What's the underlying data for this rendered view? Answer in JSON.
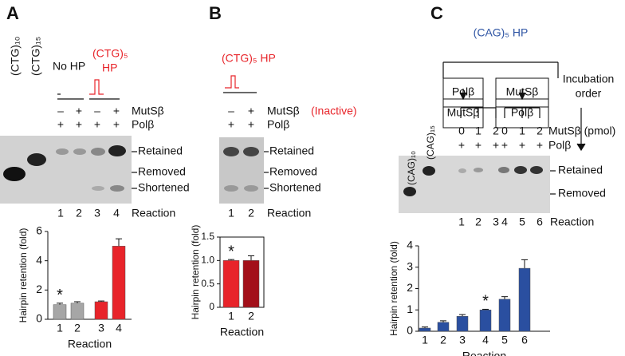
{
  "panels": {
    "A": {
      "label": "A",
      "lanes": [
        "(CTG)₁₀",
        "(CTG)₁₅"
      ],
      "no_hp": "No HP",
      "hp": [
        "(CTG)₅",
        "HP"
      ],
      "mutsb": {
        "label": "MutSβ",
        "marks": [
          "–",
          "+",
          "–",
          "+"
        ]
      },
      "polb": {
        "label": "Polβ",
        "marks": [
          "+",
          "+",
          "+",
          "+"
        ]
      },
      "bands": [
        "Retained",
        "Removed",
        "Shortened"
      ],
      "reaction": {
        "label": "Reaction",
        "lanes": [
          "1",
          "2",
          "3",
          "4"
        ]
      }
    },
    "B": {
      "label": "B",
      "hp": "(CTG)₅ HP",
      "mutsb": {
        "label": "MutSβ",
        "inactive": "(Inactive)",
        "marks": [
          "–",
          "+"
        ]
      },
      "polb": {
        "label": "Polβ",
        "marks": [
          "+",
          "+"
        ]
      },
      "bands": [
        "Retained",
        "Removed",
        "Shortened"
      ],
      "reaction": {
        "label": "Reaction",
        "lanes": [
          "1",
          "2"
        ]
      }
    },
    "C": {
      "label": "C",
      "hp": "(CAG)₅ HP",
      "lanes": [
        "(CAG)₁₀",
        "(CAG)₁₅"
      ],
      "boxes": [
        [
          "Polβ",
          "MutSβ"
        ],
        [
          "MutSβ",
          "Polβ"
        ]
      ],
      "order": [
        "Incubation",
        "order"
      ],
      "mutsb": {
        "label": "MutSβ (pmol)",
        "marks": [
          "0",
          "1",
          "2",
          "0",
          "1",
          "2"
        ]
      },
      "polb": {
        "label": "Polβ",
        "marks": [
          "+",
          "+",
          "+",
          "+",
          "+",
          "+"
        ]
      },
      "bands": [
        "Retained",
        "Removed"
      ],
      "reaction": {
        "label": "Reaction",
        "lanes": [
          "1",
          "2",
          "3",
          "4",
          "5",
          "6"
        ]
      }
    }
  },
  "chart_data": [
    {
      "type": "bar",
      "categories": [
        "1",
        "2",
        "3",
        "4"
      ],
      "values": [
        1.0,
        1.1,
        1.2,
        5.0
      ],
      "errors": [
        0.1,
        0.1,
        0.05,
        0.5
      ],
      "colors": [
        "#a6a6a6",
        "#a6a6a6",
        "#e8242a",
        "#e8242a"
      ],
      "xlabel": "Reaction",
      "ylabel": "Hairpin retention (fold)",
      "ylim": [
        0,
        6
      ],
      "yticks": [
        0,
        2,
        4,
        6
      ],
      "asterisk": "*"
    },
    {
      "type": "bar",
      "categories": [
        "1",
        "2"
      ],
      "values": [
        1.0,
        1.0
      ],
      "errors": [
        0.02,
        0.1
      ],
      "colors": [
        "#e8242a",
        "#a3101a"
      ],
      "xlabel": "Reaction",
      "ylabel": "Hairpin retention (fold)",
      "ylim": [
        0,
        1.5
      ],
      "yticks": [
        0,
        0.5,
        {
          "value": 1.0,
          "label": "1.0"
        },
        1.5
      ],
      "asterisk": "*"
    },
    {
      "type": "bar",
      "categories": [
        "1",
        "2",
        "3",
        "4",
        "5",
        "6"
      ],
      "values": [
        0.15,
        0.42,
        0.7,
        1.0,
        1.5,
        2.95
      ],
      "errors": [
        0.05,
        0.07,
        0.08,
        0.03,
        0.12,
        0.4
      ],
      "colors": [
        "#2a4fa0",
        "#2a4fa0",
        "#2a4fa0",
        "#2a4fa0",
        "#2a4fa0",
        "#2a4fa0"
      ],
      "xlabel": "Reaction",
      "ylabel": "Hairpin retention (fold)",
      "ylim": [
        0,
        4
      ],
      "yticks": [
        0,
        1,
        2,
        3,
        4
      ],
      "asterisk": "*"
    }
  ]
}
